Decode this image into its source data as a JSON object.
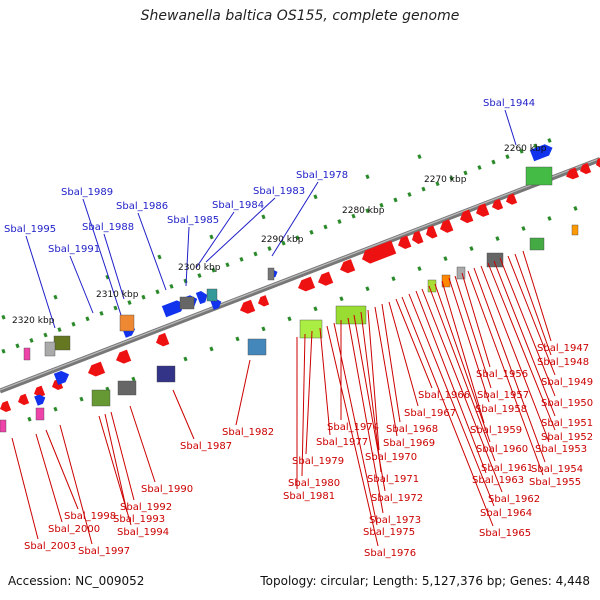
{
  "title": "Shewanella baltica OS155, complete genome",
  "accession": "Accession: NC_009052",
  "summary": "Topology: circular; Length: 5,127,376 bp; Genes: 4,448",
  "scale_labels": [
    "2260 kbp",
    "2270 kbp",
    "2280 kbp",
    "2290 kbp",
    "2300 kbp",
    "2310 kbp",
    "2320 kbp"
  ],
  "upper_labels": [
    "Sbal_1944",
    "Sbal_1978",
    "Sbal_1983",
    "Sbal_1984",
    "Sbal_1985",
    "Sbal_1986",
    "Sbal_1988",
    "Sbal_1989",
    "Sbal_1991",
    "Sbal_1995"
  ],
  "lower_labels": [
    "Sbal_1947",
    "Sbal_1948",
    "Sbal_1949",
    "Sbal_1950",
    "Sbal_1951",
    "Sbal_1952",
    "Sbal_1953",
    "Sbal_1954",
    "Sbal_1955",
    "Sbal_1956",
    "Sbal_1957",
    "Sbal_1958",
    "Sbal_1959",
    "Sbal_1960",
    "Sbal_1961",
    "Sbal_1962",
    "Sbal_1963",
    "Sbal_1964",
    "Sbal_1965",
    "Sbal_1966",
    "Sbal_1967",
    "Sbal_1968",
    "Sbal_1969",
    "Sbal_1970",
    "Sbal_1971",
    "Sbal_1972",
    "Sbal_1973",
    "Sbal_1974",
    "Sbal_1975",
    "Sbal_1976",
    "Sbal_1977",
    "Sbal_1979",
    "Sbal_1980",
    "Sbal_1981",
    "Sbal_1982",
    "Sbal_1987",
    "Sbal_1990",
    "Sbal_1992",
    "Sbal_1993",
    "Sbal_1994",
    "Sbal_1997",
    "Sbal_1998",
    "Sbal_2000",
    "Sbal_2003"
  ],
  "colors": {
    "forward_label": "#1f1fc8",
    "reverse_label": "#cc0000",
    "backbone": "#777777",
    "tick": "#2a8a2a"
  }
}
